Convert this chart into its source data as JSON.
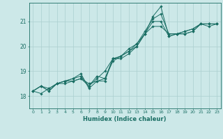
{
  "xlabel": "Humidex (Indice chaleur)",
  "ylabel": "",
  "xlim": [
    -0.5,
    23.5
  ],
  "ylim": [
    17.5,
    21.75
  ],
  "yticks": [
    18,
    19,
    20,
    21
  ],
  "xticks": [
    0,
    1,
    2,
    3,
    4,
    5,
    6,
    7,
    8,
    9,
    10,
    11,
    12,
    13,
    14,
    15,
    16,
    17,
    18,
    19,
    20,
    21,
    22,
    23
  ],
  "bg_color": "#cce8e8",
  "line_color": "#1a6e64",
  "grid_color": "#aacfcf",
  "lines": [
    [
      18.2,
      18.4,
      18.2,
      18.5,
      18.6,
      18.6,
      18.7,
      18.5,
      18.6,
      18.6,
      19.5,
      19.5,
      19.7,
      20.0,
      20.5,
      21.2,
      21.6,
      20.4,
      20.5,
      20.5,
      20.6,
      20.9,
      20.8,
      20.9
    ],
    [
      18.2,
      18.1,
      18.3,
      18.5,
      18.5,
      18.6,
      18.7,
      18.4,
      18.7,
      19.0,
      19.5,
      19.6,
      19.8,
      20.0,
      20.5,
      21.0,
      21.0,
      20.4,
      20.5,
      20.5,
      20.6,
      20.9,
      20.9,
      20.9
    ],
    [
      18.2,
      18.4,
      18.2,
      18.5,
      18.6,
      18.7,
      18.8,
      18.4,
      18.8,
      18.7,
      19.5,
      19.6,
      19.8,
      20.1,
      20.5,
      20.8,
      20.8,
      20.5,
      20.5,
      20.6,
      20.7,
      20.9,
      20.9,
      20.9
    ],
    [
      18.2,
      18.4,
      18.3,
      18.5,
      18.6,
      18.7,
      18.9,
      18.3,
      18.6,
      18.7,
      19.4,
      19.6,
      19.9,
      20.1,
      20.6,
      21.1,
      21.3,
      20.5,
      20.5,
      20.6,
      20.7,
      20.9,
      20.9,
      20.9
    ]
  ]
}
